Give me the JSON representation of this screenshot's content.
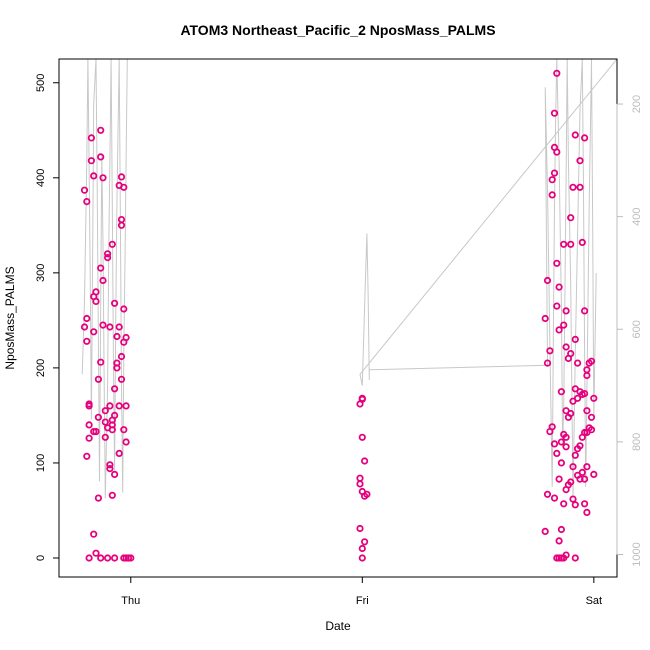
{
  "chart_data": {
    "type": "scatter",
    "title": "ATOM3 Northeast_Pacific_2 NposMass_PALMS",
    "xlabel": "Date",
    "ylabel": "NposMass_PALMS",
    "x_axis": {
      "ticks": [
        {
          "value": 1.0,
          "label": "Thu"
        },
        {
          "value": 2.0,
          "label": "Fri"
        },
        {
          "value": 3.0,
          "label": "Sat"
        }
      ],
      "range": [
        0.69,
        3.1
      ]
    },
    "y_axis_left": {
      "ticks": [
        0,
        100,
        200,
        300,
        400,
        500
      ],
      "range": [
        -20,
        525
      ]
    },
    "y_axis_right": {
      "ticks": [
        200,
        400,
        600,
        800,
        1000
      ],
      "range": [
        1040,
        120
      ]
    },
    "grid": false,
    "series": [
      {
        "kind": "points",
        "color": "#e6007e",
        "axis": "left",
        "points": [
          [
            0.8,
            387
          ],
          [
            0.81,
            375
          ],
          [
            0.8,
            243
          ],
          [
            0.81,
            228
          ],
          [
            0.81,
            252
          ],
          [
            0.82,
            160
          ],
          [
            0.81,
            107
          ],
          [
            0.82,
            126
          ],
          [
            0.82,
            140
          ],
          [
            0.83,
            442
          ],
          [
            0.84,
            402
          ],
          [
            0.83,
            418
          ],
          [
            0.84,
            275
          ],
          [
            0.85,
            270
          ],
          [
            0.85,
            280
          ],
          [
            0.84,
            238
          ],
          [
            0.85,
            133
          ],
          [
            0.86,
            148
          ],
          [
            0.87,
            206
          ],
          [
            0.86,
            188
          ],
          [
            0.86,
            63
          ],
          [
            0.87,
            450
          ],
          [
            0.87,
            422
          ],
          [
            0.88,
            400
          ],
          [
            0.87,
            305
          ],
          [
            0.88,
            292
          ],
          [
            0.88,
            245
          ],
          [
            0.89,
            155
          ],
          [
            0.89,
            127
          ],
          [
            0.9,
            320
          ],
          [
            0.9,
            316
          ],
          [
            0.91,
            243
          ],
          [
            0.91,
            160
          ],
          [
            0.91,
            98
          ],
          [
            0.91,
            94
          ],
          [
            0.92,
            140
          ],
          [
            0.92,
            66
          ],
          [
            0.92,
            330
          ],
          [
            0.93,
            268
          ],
          [
            0.93,
            178
          ],
          [
            0.94,
            200
          ],
          [
            0.94,
            233
          ],
          [
            0.95,
            243
          ],
          [
            0.95,
            160
          ],
          [
            0.95,
            392
          ],
          [
            0.96,
            401
          ],
          [
            0.96,
            356
          ],
          [
            0.96,
            350
          ],
          [
            0.97,
            227
          ],
          [
            0.97,
            262
          ],
          [
            0.98,
            232
          ],
          [
            0.98,
            160
          ],
          [
            0.97,
            390
          ],
          [
            0.96,
            188
          ],
          [
            0.95,
            110
          ],
          [
            0.97,
            135
          ],
          [
            0.98,
            122
          ],
          [
            0.93,
            88
          ],
          [
            0.94,
            205
          ],
          [
            0.84,
            25
          ],
          [
            0.85,
            5
          ],
          [
            0.82,
            0
          ],
          [
            0.87,
            0
          ],
          [
            0.9,
            0
          ],
          [
            0.93,
            0
          ],
          [
            0.97,
            0
          ],
          [
            0.98,
            0
          ],
          [
            0.99,
            0
          ],
          [
            1.0,
            0
          ],
          [
            0.82,
            162
          ],
          [
            0.84,
            133
          ],
          [
            0.89,
            143
          ],
          [
            0.92,
            135
          ],
          [
            0.93,
            150
          ],
          [
            0.9,
            137
          ],
          [
            0.92,
            145
          ],
          [
            0.96,
            212
          ],
          [
            1.99,
            162
          ],
          [
            2.0,
            168
          ],
          [
            2.0,
            127
          ],
          [
            2.01,
            102
          ],
          [
            1.99,
            84
          ],
          [
            1.99,
            78
          ],
          [
            2.0,
            70
          ],
          [
            2.01,
            65
          ],
          [
            2.02,
            67
          ],
          [
            1.99,
            31
          ],
          [
            2.01,
            17
          ],
          [
            2.0,
            10
          ],
          [
            2.0,
            0
          ],
          [
            2.0,
            167
          ],
          [
            2.79,
            252
          ],
          [
            2.8,
            292
          ],
          [
            2.8,
            205
          ],
          [
            2.81,
            218
          ],
          [
            2.82,
            398
          ],
          [
            2.83,
            468
          ],
          [
            2.83,
            432
          ],
          [
            2.84,
            510
          ],
          [
            2.84,
            427
          ],
          [
            2.82,
            382
          ],
          [
            2.83,
            405
          ],
          [
            2.84,
            310
          ],
          [
            2.85,
            285
          ],
          [
            2.84,
            265
          ],
          [
            2.85,
            240
          ],
          [
            2.86,
            175
          ],
          [
            2.87,
            245
          ],
          [
            2.88,
            260
          ],
          [
            2.89,
            210
          ],
          [
            2.9,
            358
          ],
          [
            2.9,
            330
          ],
          [
            2.91,
            390
          ],
          [
            2.92,
            445
          ],
          [
            2.93,
            205
          ],
          [
            2.94,
            418
          ],
          [
            2.94,
            390
          ],
          [
            2.95,
            332
          ],
          [
            2.96,
            260
          ],
          [
            2.97,
            198
          ],
          [
            2.97,
            192
          ],
          [
            2.98,
            205
          ],
          [
            2.99,
            207
          ],
          [
            2.96,
            442
          ],
          [
            2.82,
            138
          ],
          [
            2.83,
            120
          ],
          [
            2.84,
            110
          ],
          [
            2.86,
            100
          ],
          [
            2.85,
            83
          ],
          [
            2.8,
            67
          ],
          [
            2.79,
            28
          ],
          [
            2.83,
            63
          ],
          [
            2.85,
            18
          ],
          [
            2.86,
            30
          ],
          [
            2.87,
            57
          ],
          [
            2.88,
            72
          ],
          [
            2.89,
            77
          ],
          [
            2.9,
            80
          ],
          [
            2.91,
            96
          ],
          [
            2.92,
            108
          ],
          [
            2.93,
            115
          ],
          [
            2.94,
            118
          ],
          [
            2.95,
            127
          ],
          [
            2.96,
            132
          ],
          [
            2.97,
            132
          ],
          [
            2.98,
            137
          ],
          [
            2.99,
            135
          ],
          [
            3.0,
            88
          ],
          [
            2.93,
            87
          ],
          [
            2.94,
            83
          ],
          [
            2.95,
            90
          ],
          [
            2.96,
            83
          ],
          [
            2.97,
            96
          ],
          [
            2.91,
            62
          ],
          [
            2.92,
            56
          ],
          [
            2.96,
            57
          ],
          [
            2.97,
            48
          ],
          [
            2.88,
            155
          ],
          [
            2.89,
            148
          ],
          [
            2.9,
            152
          ],
          [
            2.91,
            165
          ],
          [
            2.92,
            178
          ],
          [
            2.93,
            168
          ],
          [
            2.94,
            175
          ],
          [
            2.95,
            172
          ],
          [
            2.96,
            173
          ],
          [
            2.97,
            155
          ],
          [
            2.99,
            148
          ],
          [
            3.0,
            168
          ],
          [
            2.88,
            117
          ],
          [
            2.86,
            122
          ],
          [
            2.87,
            130
          ],
          [
            2.88,
            127
          ],
          [
            2.84,
            0
          ],
          [
            2.85,
            0
          ],
          [
            2.86,
            0
          ],
          [
            2.87,
            0
          ],
          [
            2.88,
            3
          ],
          [
            2.92,
            0
          ],
          [
            2.88,
            222
          ],
          [
            2.9,
            215
          ],
          [
            2.92,
            230
          ],
          [
            2.87,
            330
          ],
          [
            2.81,
            133
          ]
        ]
      },
      {
        "kind": "line",
        "color": "#c8c8c8",
        "axis": "right",
        "points": [
          [
            0.79,
            680
          ],
          [
            0.8,
            550
          ],
          [
            0.81,
            300
          ],
          [
            0.815,
            120
          ],
          [
            0.82,
            310
          ],
          [
            0.825,
            520
          ],
          [
            0.83,
            760
          ],
          [
            0.835,
            480
          ],
          [
            0.84,
            200
          ],
          [
            0.85,
            120
          ],
          [
            0.855,
            350
          ],
          [
            0.86,
            620
          ],
          [
            0.865,
            870
          ],
          [
            0.87,
            560
          ],
          [
            0.875,
            290
          ],
          [
            0.88,
            450
          ],
          [
            0.885,
            680
          ],
          [
            0.89,
            900
          ],
          [
            0.9,
            700
          ],
          [
            0.905,
            450
          ],
          [
            0.91,
            300
          ],
          [
            0.915,
            120
          ],
          [
            0.92,
            380
          ],
          [
            0.925,
            650
          ],
          [
            0.93,
            850
          ],
          [
            0.935,
            590
          ],
          [
            0.94,
            380
          ],
          [
            0.945,
            250
          ],
          [
            0.95,
            120
          ],
          [
            0.955,
            410
          ],
          [
            0.96,
            700
          ],
          [
            0.965,
            890
          ],
          [
            0.97,
            640
          ],
          [
            0.975,
            480
          ],
          [
            0.98,
            300
          ],
          [
            0.985,
            120
          ],
          [
            0.99,
            120
          ],
          [
            1.0,
            120
          ],
          [
            2.9,
            120
          ],
          [
            3.1,
            120
          ],
          [
            1.99,
            680
          ],
          [
            2.0,
            700
          ],
          [
            2.01,
            560
          ],
          [
            2.02,
            430
          ],
          [
            2.025,
            535
          ],
          [
            2.03,
            690
          ],
          [
            2.03,
            672
          ],
          [
            2.8,
            664
          ],
          [
            2.79,
            170
          ],
          [
            2.8,
            350
          ],
          [
            2.81,
            630
          ],
          [
            2.82,
            880
          ],
          [
            2.825,
            620
          ],
          [
            2.83,
            380
          ],
          [
            2.835,
            230
          ],
          [
            2.84,
            120
          ],
          [
            2.85,
            300
          ],
          [
            2.86,
            560
          ],
          [
            2.865,
            810
          ],
          [
            2.87,
            740
          ],
          [
            2.875,
            540
          ],
          [
            2.88,
            330
          ],
          [
            2.885,
            120
          ],
          [
            2.89,
            300
          ],
          [
            2.9,
            520
          ],
          [
            2.905,
            720
          ],
          [
            2.91,
            900
          ],
          [
            2.92,
            640
          ],
          [
            2.93,
            430
          ],
          [
            2.94,
            210
          ],
          [
            2.95,
            120
          ],
          [
            2.955,
            330
          ],
          [
            2.96,
            640
          ],
          [
            2.965,
            880
          ],
          [
            2.97,
            710
          ],
          [
            2.98,
            380
          ],
          [
            2.99,
            120
          ],
          [
            2.995,
            420
          ],
          [
            3.0,
            760
          ],
          [
            3.01,
            500
          ]
        ]
      }
    ]
  }
}
